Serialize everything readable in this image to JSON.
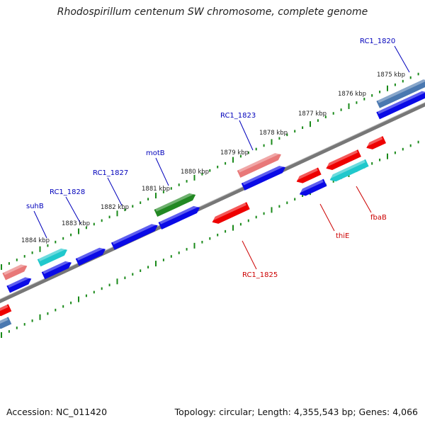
{
  "title": "Rhodospirillum centenum SW chromosome, complete genome",
  "accession": "Accession: NC_011420",
  "topology": "Topology: circular; Length: 4,355,543 bp; Genes: 4,066",
  "colors": {
    "ticks": "#1a8a1a",
    "backbone": "#888888",
    "forward_gene": "#0a0ae6",
    "reverse_gene": "#ee0000",
    "rrna_like": "#e87878",
    "trna_like": "#20c8cc",
    "highlight_green": "#228822",
    "steel": "#4a78b0",
    "label_blue": "#0000bb",
    "label_red": "#cc0000"
  },
  "scale_labels": [
    "1875 kbp",
    "1876 kbp",
    "1877 kbp",
    "1878 kbp",
    "1879 kbp",
    "1880 kbp",
    "1881 kbp",
    "1882 kbp",
    "1883 kbp",
    "1884 kbp"
  ],
  "gene_labels": [
    {
      "text": "RC1_1820",
      "color": "blue"
    },
    {
      "text": "RC1_1823",
      "color": "blue"
    },
    {
      "text": "motB",
      "color": "blue"
    },
    {
      "text": "RC1_1827",
      "color": "blue"
    },
    {
      "text": "RC1_1828",
      "color": "blue"
    },
    {
      "text": "suhB",
      "color": "blue"
    },
    {
      "text": "RC1_1825",
      "color": "red"
    },
    {
      "text": "thiE",
      "color": "red"
    },
    {
      "text": "fbaB",
      "color": "red"
    }
  ]
}
